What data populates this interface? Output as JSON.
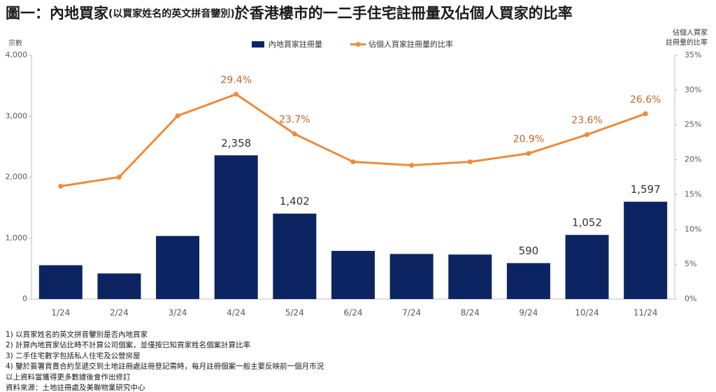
{
  "chart_data": {
    "type": "bar-line",
    "title_parts": [
      "圖一：內地買家",
      "(以買家姓名的英文拼音鑒別)",
      "於香港樓市的一二手住宅註冊量及佔個人買家的比率"
    ],
    "ylabel": "宗數",
    "y2label": [
      "佔個人買家",
      "註冊量的比率"
    ],
    "categories": [
      "1/24",
      "2/24",
      "3/24",
      "4/24",
      "5/24",
      "6/24",
      "7/24",
      "8/24",
      "9/24",
      "10/24",
      "11/24"
    ],
    "series": [
      {
        "name": "內地買家註冊量",
        "type": "bar",
        "color": "#0d2463",
        "values": [
          555,
          420,
          1035,
          2358,
          1402,
          790,
          740,
          730,
          590,
          1052,
          1597
        ],
        "value_labels": [
          null,
          null,
          null,
          "2,358",
          "1,402",
          null,
          null,
          null,
          "590",
          "1,052",
          "1,597"
        ]
      },
      {
        "name": "佔個人買家註冊量的比率",
        "type": "line",
        "axis": "y2",
        "color": "#ee8a3c",
        "values": [
          16.2,
          17.5,
          26.3,
          29.4,
          23.7,
          19.7,
          19.2,
          19.7,
          20.9,
          23.6,
          26.6
        ],
        "value_labels": [
          null,
          null,
          null,
          "29.4%",
          "23.7%",
          null,
          null,
          null,
          "20.9%",
          "23.6%",
          "26.6%"
        ]
      }
    ],
    "ylim": [
      0,
      4000
    ],
    "yticks": [
      0,
      {
        "value": 1000,
        "label": "1,000"
      },
      {
        "value": 2000,
        "label": "2,000"
      },
      {
        "value": 3000,
        "label": "3,000"
      },
      {
        "value": 4000,
        "label": "4,000"
      }
    ],
    "y2lim": [
      0,
      35
    ],
    "y2ticks": [
      {
        "value": 0,
        "label": "0%"
      },
      {
        "value": 5,
        "label": "5%"
      },
      {
        "value": 10,
        "label": "10%"
      },
      {
        "value": 15,
        "label": "15%"
      },
      {
        "value": 20,
        "label": "20%"
      },
      {
        "value": 25,
        "label": "25%"
      },
      {
        "value": 30,
        "label": "30%"
      },
      {
        "value": 35,
        "label": "35%"
      }
    ],
    "legend": "top",
    "notes": [
      "1) 以買家姓名的英文拼音鑒別是否內地買家",
      "2) 計算內地買家佔比時不計算公司個案，並僅按已知買家姓名個案計算比率",
      "3) 二手住宅數字包括私人住宅及公營房屋",
      "4) 鑒於簽署買賣合約至遞交到土地註冊處註冊登記需時，每月註冊個案一般主要反映前一個月市況",
      "以上資料當獲得更多數據後會作出修訂",
      "資料來源：土地註冊處及美聯物業研究中心"
    ]
  }
}
